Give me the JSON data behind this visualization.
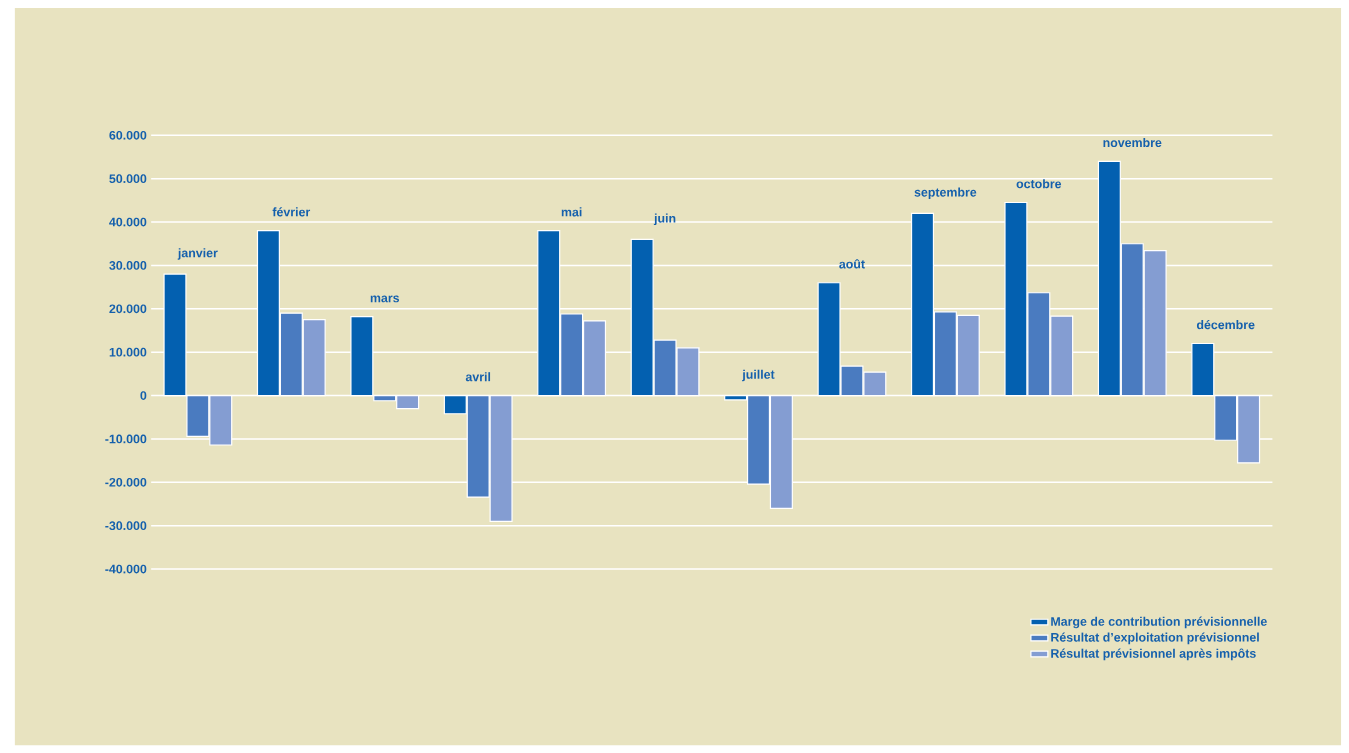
{
  "chart_data": {
    "type": "bar",
    "categories": [
      "janvier",
      "février",
      "mars",
      "avril",
      "mai",
      "juin",
      "juillet",
      "août",
      "septembre",
      "octobre",
      "novembre",
      "décembre"
    ],
    "series": [
      {
        "name": "Marge de contribution prévisionnelle",
        "color": "#0360b0",
        "values": [
          28000,
          38000,
          18200,
          -4200,
          38000,
          36000,
          -1000,
          26000,
          42000,
          44500,
          54000,
          12000
        ]
      },
      {
        "name": "Résultat d’exploitation prévisionnel",
        "color": "#4a7bc0",
        "values": [
          -9400,
          19000,
          -1200,
          -23400,
          18800,
          12800,
          -20400,
          6800,
          19300,
          23700,
          35000,
          -10300
        ]
      },
      {
        "name": "Résultat prévisionnel après impôts",
        "color": "#849dd2",
        "values": [
          -11400,
          17500,
          -3000,
          -29000,
          17200,
          11000,
          -26000,
          5400,
          18500,
          18300,
          33400,
          -15500
        ]
      }
    ],
    "ylim": [
      -40000,
      60000
    ],
    "yticks": [
      {
        "value": -40000,
        "label": "-40.000"
      },
      {
        "value": -30000,
        "label": "-30.000"
      },
      {
        "value": -20000,
        "label": "-20.000"
      },
      {
        "value": -10000,
        "label": "-10.000"
      },
      {
        "value": 0,
        "label": "0"
      },
      {
        "value": 10000,
        "label": "10.000"
      },
      {
        "value": 20000,
        "label": "20.000"
      },
      {
        "value": 30000,
        "label": "30.000"
      },
      {
        "value": 40000,
        "label": "40.000"
      },
      {
        "value": 50000,
        "label": "50.000"
      },
      {
        "value": 60000,
        "label": "60.000"
      }
    ],
    "grid": "y",
    "legend": "bottom right"
  }
}
